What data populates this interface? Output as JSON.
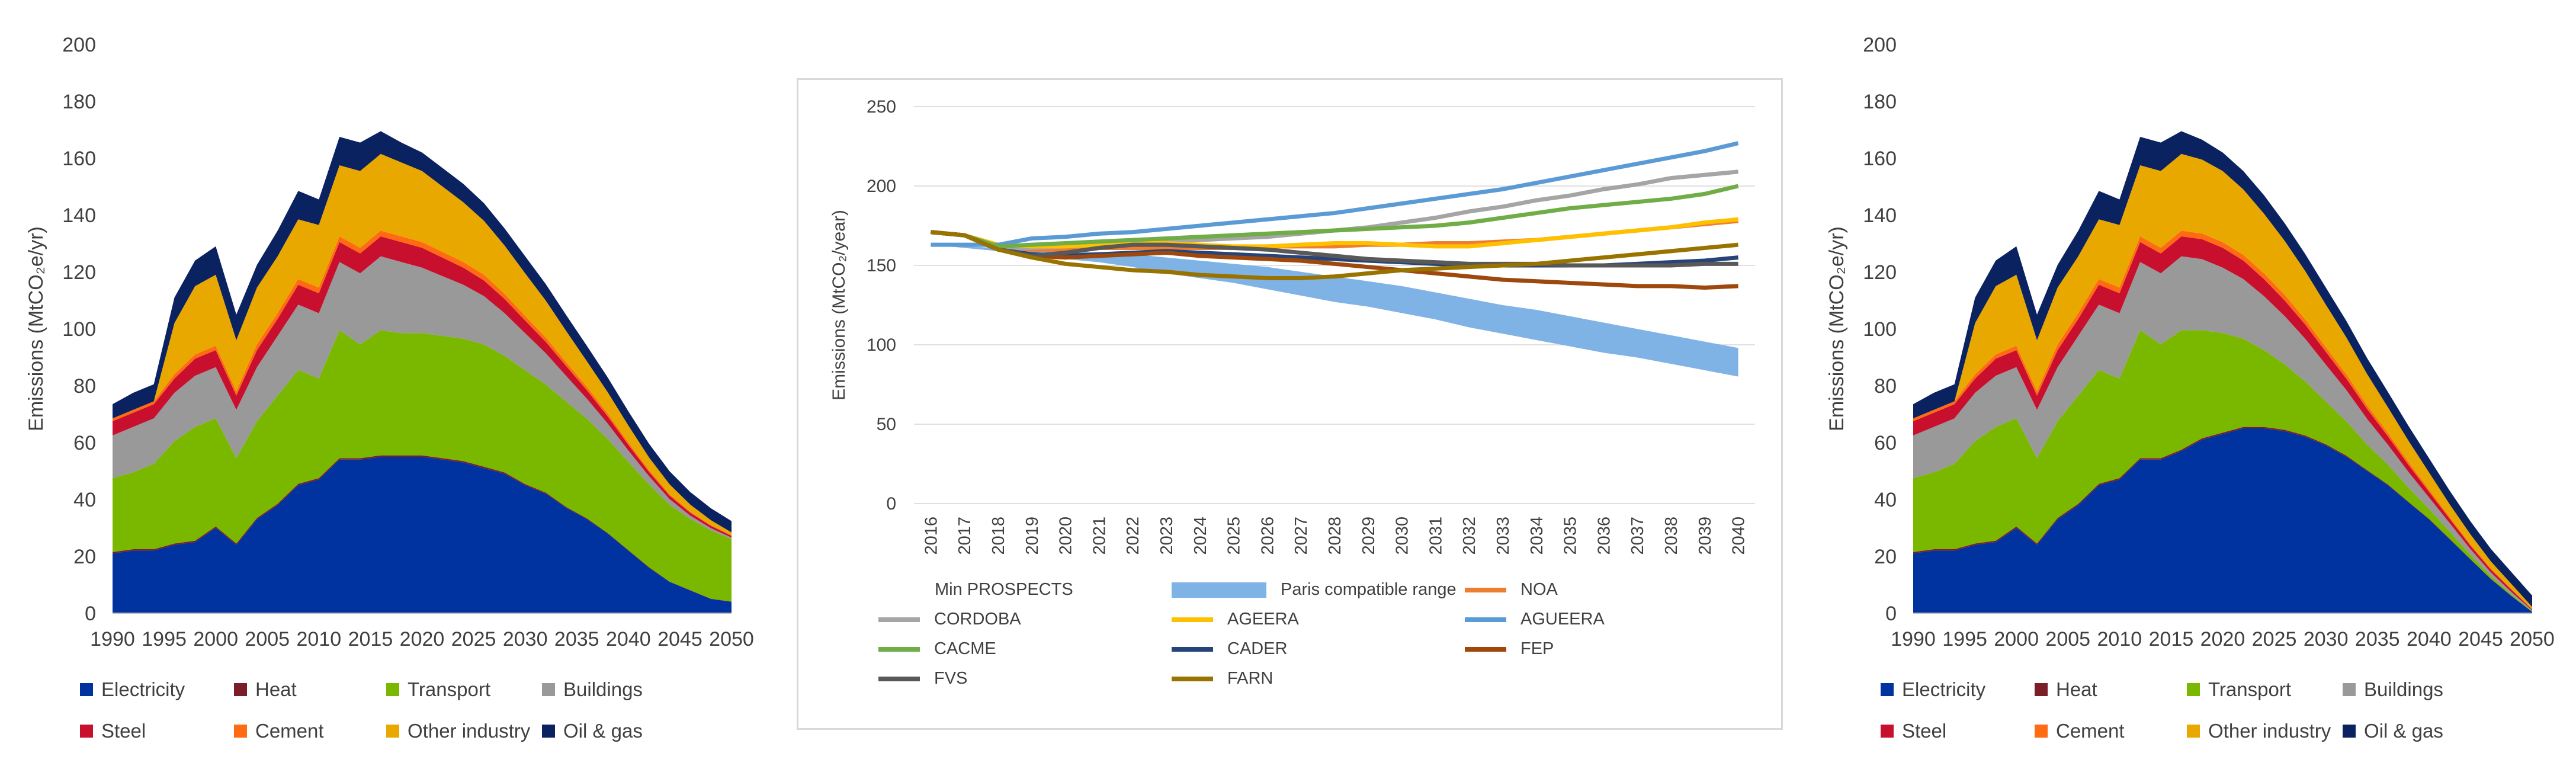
{
  "chart_data": [
    {
      "type": "area",
      "stacked": true,
      "ylabel": "Emissions (MtCO₂e/yr)",
      "ylim": [
        0,
        200
      ],
      "yticks": [
        0,
        20,
        40,
        60,
        80,
        100,
        120,
        140,
        160,
        180,
        200
      ],
      "xlim": [
        1990,
        2050
      ],
      "xticks": [
        1990,
        1995,
        2000,
        2005,
        2010,
        2015,
        2020,
        2025,
        2030,
        2035,
        2040,
        2045,
        2050
      ],
      "legend_position": "bottom",
      "x": [
        1990,
        1992,
        1994,
        1996,
        1998,
        2000,
        2002,
        2004,
        2006,
        2008,
        2010,
        2012,
        2014,
        2016,
        2018,
        2020,
        2022,
        2024,
        2026,
        2028,
        2030,
        2032,
        2034,
        2036,
        2038,
        2040,
        2042,
        2044,
        2046,
        2048,
        2050
      ],
      "series": [
        {
          "name": "Electricity",
          "color": "#0033a0",
          "values": [
            21,
            22,
            22,
            24,
            25,
            30,
            24,
            33,
            38,
            45,
            47,
            54,
            54,
            55,
            55,
            55,
            54,
            53,
            51,
            49,
            45,
            42,
            37,
            33,
            28,
            22,
            16,
            11,
            8,
            5,
            4
          ]
        },
        {
          "name": "Heat",
          "color": "#7b1e2a",
          "values": [
            0.5,
            0.5,
            0.5,
            0.5,
            0.5,
            0.5,
            0.5,
            0.5,
            0.5,
            0.5,
            0.5,
            0.5,
            0.5,
            0.5,
            0.5,
            0.5,
            0.5,
            0.5,
            0.5,
            0.5,
            0.4,
            0.4,
            0.3,
            0.3,
            0.2,
            0.2,
            0.2,
            0.1,
            0.1,
            0.1,
            0.1
          ]
        },
        {
          "name": "Transport",
          "color": "#7ab800",
          "values": [
            26,
            27,
            30,
            36,
            40,
            38,
            30,
            34,
            38,
            40,
            35,
            45,
            40,
            44,
            43,
            43,
            43,
            43,
            43,
            41,
            40,
            38,
            37,
            35,
            33,
            31,
            29,
            27,
            25,
            24,
            22
          ]
        },
        {
          "name": "Buildings",
          "color": "#999999",
          "values": [
            15,
            16,
            16,
            17,
            18,
            18,
            17,
            19,
            21,
            23,
            23,
            24,
            25,
            26,
            25,
            23,
            21,
            19,
            17,
            15,
            13,
            11,
            9,
            7,
            5.5,
            4,
            3,
            2,
            1.2,
            0.8,
            0.5
          ]
        },
        {
          "name": "Steel",
          "color": "#c8102e",
          "values": [
            5,
            5,
            5,
            5,
            6,
            6,
            5,
            6,
            6,
            7,
            7,
            7,
            7,
            7,
            7,
            7,
            6.5,
            6,
            5.5,
            5,
            4.5,
            4,
            3.5,
            3,
            2.5,
            2,
            1.5,
            1.2,
            1,
            0.8,
            0.6
          ]
        },
        {
          "name": "Cement",
          "color": "#ff6a13",
          "values": [
            1,
            1,
            1,
            1.5,
            1.5,
            1.5,
            1.5,
            2,
            2,
            2,
            2,
            2,
            2,
            2,
            2,
            2,
            2,
            2,
            2,
            1.8,
            1.6,
            1.5,
            1.3,
            1.2,
            1,
            0.8,
            0.6,
            0.5,
            0.4,
            0.3,
            0.2
          ]
        },
        {
          "name": "Other industry",
          "color": "#e8a800",
          "values": [
            0,
            0,
            0,
            18,
            24,
            25,
            18,
            20,
            20,
            21,
            22,
            25,
            27,
            27,
            26,
            25,
            23,
            21,
            19,
            17,
            15,
            13,
            11,
            9,
            7.5,
            6,
            4.5,
            3.5,
            2.5,
            1.7,
            1
          ]
        },
        {
          "name": "Oil & gas",
          "color": "#0b2260",
          "values": [
            5,
            6,
            6,
            9,
            9,
            10,
            9,
            8,
            9,
            10,
            9,
            10,
            10,
            8,
            7,
            6.5,
            6.5,
            6.5,
            6.2,
            6,
            6,
            5.8,
            5.6,
            5.4,
            5.2,
            5,
            4.8,
            4.6,
            4.4,
            4.2,
            4
          ]
        }
      ]
    },
    {
      "type": "line",
      "ylabel": "Emissions (MtCO₂/year)",
      "ylim": [
        0,
        250
      ],
      "yticks": [
        0,
        50,
        100,
        150,
        200,
        250
      ],
      "categories": [
        "2016",
        "2017",
        "2018",
        "2019",
        "2020",
        "2021",
        "2022",
        "2023",
        "2024",
        "2025",
        "2026",
        "2027",
        "2028",
        "2029",
        "2030",
        "2031",
        "2032",
        "2033",
        "2034",
        "2035",
        "2036",
        "2037",
        "2038",
        "2039",
        "2040"
      ],
      "legend_position": "bottom",
      "min_prospects_label": "Min PROSPECTS",
      "band": {
        "name": "Paris compatible range",
        "color": "#7fb2e5",
        "upper": [
          163,
          162,
          161,
          160,
          159,
          158,
          157,
          155,
          153,
          151,
          149,
          146,
          143,
          140,
          137,
          133,
          129,
          125,
          122,
          118,
          114,
          110,
          106,
          102,
          98
        ],
        "lower": [
          163,
          161,
          159,
          156,
          154,
          152,
          149,
          145,
          142,
          139,
          135,
          131,
          127,
          124,
          120,
          116,
          111,
          107,
          103,
          99,
          95,
          92,
          88,
          84,
          80
        ]
      },
      "series": [
        {
          "name": "NOA",
          "color": "#ed7d31",
          "values": [
            171,
            169,
            160,
            160,
            160,
            161,
            161,
            161,
            161,
            161,
            162,
            162,
            162,
            163,
            163,
            164,
            164,
            165,
            166,
            168,
            170,
            172,
            174,
            176,
            178
          ]
        },
        {
          "name": "CORDOBA",
          "color": "#a5a5a5",
          "values": [
            171,
            169,
            160,
            161,
            162,
            163,
            164,
            165,
            166,
            167,
            168,
            170,
            172,
            174,
            177,
            180,
            184,
            187,
            191,
            194,
            198,
            201,
            205,
            207,
            209
          ]
        },
        {
          "name": "AGEERA",
          "color": "#ffc000",
          "values": [
            171,
            169,
            163,
            162,
            162,
            163,
            164,
            164,
            163,
            162,
            162,
            163,
            164,
            164,
            163,
            162,
            162,
            164,
            166,
            168,
            170,
            172,
            174,
            177,
            179
          ]
        },
        {
          "name": "AGUEERA",
          "color": "#5b9bd5",
          "values": [
            163,
            163,
            163,
            167,
            168,
            170,
            171,
            173,
            175,
            177,
            179,
            181,
            183,
            186,
            189,
            192,
            195,
            198,
            202,
            206,
            210,
            214,
            218,
            222,
            227
          ]
        },
        {
          "name": "CACME",
          "color": "#70ad47",
          "values": [
            171,
            169,
            162,
            163,
            164,
            165,
            166,
            167,
            168,
            169,
            170,
            171,
            172,
            173,
            174,
            175,
            177,
            180,
            183,
            186,
            188,
            190,
            192,
            195,
            200
          ]
        },
        {
          "name": "CADER",
          "color": "#264478",
          "values": [
            171,
            169,
            160,
            157,
            156,
            157,
            158,
            159,
            158,
            157,
            156,
            155,
            154,
            153,
            152,
            151,
            150,
            150,
            150,
            150,
            150,
            151,
            152,
            153,
            155
          ]
        },
        {
          "name": "FEP",
          "color": "#9e480e",
          "values": [
            171,
            169,
            160,
            156,
            155,
            156,
            157,
            158,
            156,
            155,
            154,
            153,
            151,
            149,
            147,
            145,
            143,
            141,
            140,
            139,
            138,
            137,
            137,
            136,
            137
          ]
        },
        {
          "name": "FVS",
          "color": "#595959",
          "values": [
            171,
            169,
            160,
            156,
            158,
            161,
            163,
            163,
            162,
            161,
            160,
            158,
            156,
            154,
            153,
            152,
            151,
            151,
            151,
            150,
            150,
            150,
            150,
            151,
            151
          ]
        },
        {
          "name": "FARN",
          "color": "#997300",
          "values": [
            171,
            169,
            160,
            155,
            151,
            149,
            147,
            146,
            144,
            143,
            142,
            142,
            143,
            145,
            147,
            148,
            149,
            150,
            151,
            153,
            155,
            157,
            159,
            161,
            163
          ]
        }
      ]
    },
    {
      "type": "area",
      "stacked": true,
      "ylabel": "Emissions (MtCO₂e/yr)",
      "ylim": [
        0,
        200
      ],
      "yticks": [
        0,
        20,
        40,
        60,
        80,
        100,
        120,
        140,
        160,
        180,
        200
      ],
      "xlim": [
        1990,
        2050
      ],
      "xticks": [
        1990,
        1995,
        2000,
        2005,
        2010,
        2015,
        2020,
        2025,
        2030,
        2035,
        2040,
        2045,
        2050
      ],
      "legend_position": "bottom",
      "x": [
        1990,
        1992,
        1994,
        1996,
        1998,
        2000,
        2002,
        2004,
        2006,
        2008,
        2010,
        2012,
        2014,
        2016,
        2018,
        2020,
        2022,
        2024,
        2026,
        2028,
        2030,
        2032,
        2034,
        2036,
        2038,
        2040,
        2042,
        2044,
        2046,
        2048,
        2050
      ],
      "series": [
        {
          "name": "Electricity",
          "color": "#0033a0",
          "values": [
            21,
            22,
            22,
            24,
            25,
            30,
            24,
            33,
            38,
            45,
            47,
            54,
            54,
            57,
            61,
            63,
            65,
            65,
            64,
            62,
            59,
            55,
            50,
            45,
            39,
            33,
            26,
            19,
            12,
            6,
            0.5
          ]
        },
        {
          "name": "Heat",
          "color": "#7b1e2a",
          "values": [
            0.5,
            0.5,
            0.5,
            0.5,
            0.5,
            0.5,
            0.5,
            0.5,
            0.5,
            0.5,
            0.5,
            0.5,
            0.5,
            0.5,
            0.5,
            0.5,
            0.5,
            0.5,
            0.5,
            0.5,
            0.4,
            0.4,
            0.3,
            0.3,
            0.2,
            0.2,
            0.2,
            0.1,
            0.1,
            0.1,
            0
          ]
        },
        {
          "name": "Transport",
          "color": "#7ab800",
          "values": [
            26,
            27,
            30,
            36,
            40,
            38,
            30,
            34,
            38,
            40,
            35,
            45,
            40,
            42,
            38,
            35,
            31,
            27,
            23,
            19,
            15,
            12,
            9,
            7,
            5,
            3.5,
            2.5,
            1.5,
            1,
            0.5,
            0.2
          ]
        },
        {
          "name": "Buildings",
          "color": "#999999",
          "values": [
            15,
            16,
            16,
            17,
            18,
            18,
            17,
            19,
            21,
            23,
            23,
            24,
            25,
            26,
            25,
            23,
            21,
            19,
            17,
            15,
            13,
            11,
            9,
            7,
            5.5,
            4,
            3,
            2,
            1.2,
            0.8,
            0.3
          ]
        },
        {
          "name": "Steel",
          "color": "#c8102e",
          "values": [
            5,
            5,
            5,
            5,
            6,
            6,
            5,
            6,
            6,
            7,
            7,
            7,
            7,
            7,
            7,
            7,
            6.5,
            6,
            5.5,
            5,
            4.5,
            4,
            3.5,
            3,
            2.5,
            2,
            1.5,
            1.2,
            1,
            0.8,
            0.3
          ]
        },
        {
          "name": "Cement",
          "color": "#ff6a13",
          "values": [
            1,
            1,
            1,
            1.5,
            1.5,
            1.5,
            1.5,
            2,
            2,
            2,
            2,
            2,
            2,
            2,
            2,
            2,
            2,
            2,
            2,
            1.8,
            1.6,
            1.5,
            1.3,
            1.2,
            1,
            0.8,
            0.6,
            0.5,
            0.4,
            0.3,
            0.1
          ]
        },
        {
          "name": "Other industry",
          "color": "#e8a800",
          "values": [
            0,
            0,
            0,
            18,
            24,
            25,
            18,
            20,
            20,
            21,
            22,
            25,
            27,
            27,
            26,
            25,
            23,
            21,
            19,
            17,
            15,
            13,
            11,
            9,
            7.5,
            6,
            4.5,
            3.5,
            2.5,
            1.7,
            0.8
          ]
        },
        {
          "name": "Oil & gas",
          "color": "#0b2260",
          "values": [
            5,
            6,
            6,
            9,
            9,
            10,
            9,
            8,
            9,
            10,
            9,
            10,
            10,
            8,
            7,
            6.5,
            6.5,
            6.5,
            6.2,
            6,
            6,
            5.8,
            5.6,
            5.4,
            5.2,
            5,
            4.8,
            4.6,
            4.4,
            4.2,
            4
          ]
        }
      ]
    }
  ]
}
